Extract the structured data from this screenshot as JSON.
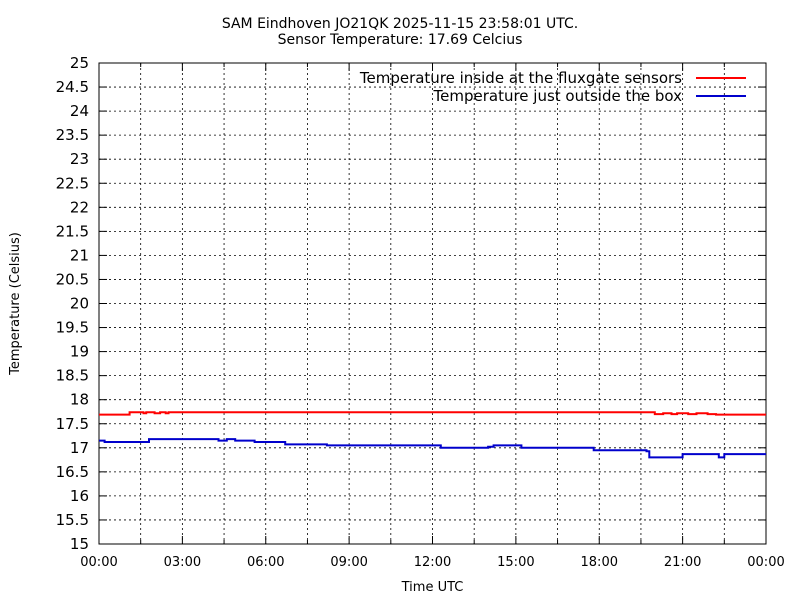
{
  "chart_data": {
    "type": "line",
    "title": "SAM Eindhoven JO21QK 2025-11-15 23:58:01 UTC.",
    "subtitle": "Sensor Temperature: 17.69 Celcius",
    "xlabel": "Time UTC",
    "ylabel": "Temperature (Celsius)",
    "xlim": [
      0,
      24
    ],
    "ylim": [
      15,
      25
    ],
    "x_ticks": [
      "00:00",
      "03:00",
      "06:00",
      "09:00",
      "12:00",
      "15:00",
      "18:00",
      "21:00",
      "00:00"
    ],
    "y_ticks": [
      "15",
      "15.5",
      "16",
      "16.5",
      "17",
      "17.5",
      "18",
      "18.5",
      "19",
      "19.5",
      "20",
      "20.5",
      "21",
      "21.5",
      "22",
      "22.5",
      "23",
      "23.5",
      "24",
      "24.5",
      "25"
    ],
    "grid": true,
    "legend_position": "top-right",
    "series": [
      {
        "name": "Temperature inside at the fluxgate sensors",
        "color": "#ff0000",
        "x": [
          0,
          1.0,
          1.1,
          1.6,
          1.7,
          2.0,
          2.2,
          2.4,
          2.5,
          2.6,
          3.5,
          10.3,
          10.4,
          19.8,
          20.0,
          20.3,
          20.6,
          20.8,
          21.2,
          21.5,
          21.9,
          22.2,
          24
        ],
        "y": [
          17.69,
          17.69,
          17.74,
          17.72,
          17.74,
          17.72,
          17.74,
          17.72,
          17.74,
          17.74,
          17.74,
          17.74,
          17.74,
          17.74,
          17.7,
          17.72,
          17.7,
          17.72,
          17.7,
          17.72,
          17.7,
          17.69,
          17.69
        ]
      },
      {
        "name": "Temperature just outside the box",
        "color": "#0000cc",
        "x": [
          0,
          0.2,
          1.6,
          1.8,
          3.0,
          4.3,
          4.6,
          4.9,
          5.2,
          5.6,
          6.0,
          6.5,
          6.7,
          7.0,
          8.0,
          8.2,
          12.2,
          12.3,
          13.8,
          14.0,
          14.2,
          15.0,
          15.2,
          17.6,
          17.8,
          18.5,
          19.0,
          19.7,
          19.8,
          20.9,
          21.0,
          22.2,
          22.3,
          22.5,
          24
        ],
        "y": [
          17.15,
          17.12,
          17.12,
          17.18,
          17.18,
          17.15,
          17.18,
          17.15,
          17.15,
          17.12,
          17.12,
          17.12,
          17.07,
          17.07,
          17.07,
          17.05,
          17.05,
          17.0,
          17.0,
          17.02,
          17.05,
          17.05,
          17.0,
          17.0,
          16.95,
          16.95,
          16.95,
          16.93,
          16.8,
          16.8,
          16.87,
          16.87,
          16.8,
          16.87,
          16.87
        ]
      }
    ]
  }
}
